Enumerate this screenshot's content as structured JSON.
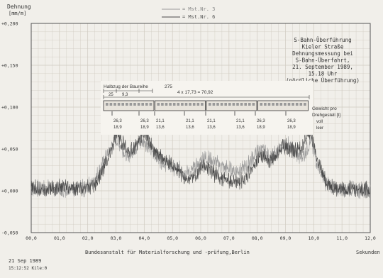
{
  "chart_data": {
    "type": "line",
    "ylabel": "Dehnung",
    "yunit": "[mm/m]",
    "xlabel": "Sekunden",
    "xlim": [
      0,
      12
    ],
    "ylim": [
      -0.05,
      0.2
    ],
    "yticks": [
      -0.05,
      0.0,
      0.05,
      0.1,
      0.15,
      0.2
    ],
    "ytick_labels": [
      "-0,050",
      "+0,000",
      "+0,050",
      "+0,100",
      "+0,150",
      "+0,200"
    ],
    "xticks": [
      0,
      1,
      2,
      3,
      4,
      5,
      6,
      7,
      8,
      9,
      10,
      11,
      12
    ],
    "xtick_labels": [
      "00,0",
      "01,0",
      "02,0",
      "03,0",
      "04,0",
      "05,0",
      "06,0",
      "07,0",
      "08,0",
      "09,0",
      "10,0",
      "11,0",
      "12,0"
    ],
    "grid": true,
    "legend": [
      {
        "text": "= Mst.Nr. 3",
        "color": "#9a9a9a"
      },
      {
        "text": "= Mst.Nr. 6",
        "color": "#4a4a4a"
      }
    ],
    "series": [
      {
        "color": "#9a9a9a",
        "x": [
          0,
          0.5,
          1,
          1.5,
          1.9,
          2.2,
          2.5,
          2.8,
          3.0,
          3.2,
          3.4,
          3.6,
          3.8,
          4.0,
          4.2,
          4.4,
          4.6,
          4.8,
          5.0,
          5.3,
          5.6,
          5.9,
          6.1,
          6.3,
          6.5,
          6.8,
          7.0,
          7.3,
          7.6,
          7.9,
          8.1,
          8.3,
          8.5,
          8.7,
          8.9,
          9.1,
          9.3,
          9.5,
          9.7,
          9.9,
          10.1,
          10.4,
          10.8,
          11.2,
          11.6,
          12
        ],
        "y": [
          0.002,
          0.004,
          0.001,
          0.003,
          0.004,
          0.01,
          0.03,
          0.05,
          0.062,
          0.052,
          0.04,
          0.048,
          0.056,
          0.06,
          0.05,
          0.042,
          0.036,
          0.032,
          0.028,
          0.025,
          0.022,
          0.03,
          0.04,
          0.038,
          0.034,
          0.028,
          0.026,
          0.024,
          0.028,
          0.042,
          0.05,
          0.045,
          0.04,
          0.046,
          0.052,
          0.055,
          0.046,
          0.04,
          0.045,
          0.06,
          0.035,
          0.01,
          0.002,
          0.003,
          0.001,
          0.002
        ]
      },
      {
        "color": "#4a4a4a",
        "x": [
          0,
          0.5,
          1,
          1.5,
          1.9,
          2.2,
          2.5,
          2.8,
          3.0,
          3.2,
          3.4,
          3.6,
          3.8,
          4.0,
          4.2,
          4.4,
          4.6,
          4.8,
          5.0,
          5.3,
          5.6,
          5.9,
          6.1,
          6.3,
          6.5,
          6.8,
          7.0,
          7.3,
          7.6,
          7.9,
          8.1,
          8.3,
          8.5,
          8.7,
          8.9,
          9.1,
          9.3,
          9.5,
          9.7,
          9.9,
          10.1,
          10.4,
          10.8,
          11.2,
          11.6,
          12
        ],
        "y": [
          0.003,
          0.002,
          0.004,
          0.002,
          0.003,
          0.006,
          0.022,
          0.045,
          0.068,
          0.06,
          0.046,
          0.05,
          0.06,
          0.07,
          0.058,
          0.045,
          0.04,
          0.034,
          0.03,
          0.02,
          0.012,
          0.022,
          0.03,
          0.026,
          0.02,
          0.014,
          0.012,
          0.01,
          0.016,
          0.03,
          0.042,
          0.04,
          0.036,
          0.042,
          0.056,
          0.05,
          0.048,
          0.05,
          0.06,
          0.07,
          0.04,
          0.012,
          0.003,
          0.002,
          0.003,
          0.001
        ]
      }
    ]
  },
  "annotation": {
    "lines": [
      "S-Bahn-Überführung",
      "Kieler Straße",
      "Dehnungsmessung bei",
      "S-Bahn-Überfahrt,",
      "21. September 1989,",
      "15.18 Uhr",
      "(nördliche Überführung)"
    ]
  },
  "train": {
    "label": "Halbzug der Baureihe",
    "series_number": "275",
    "length_formula": "4 x 17,73 = 70,92",
    "dim_a": "25",
    "dim_b": "9,3",
    "weight_label": "Gewicht pro Drehgestell [t]",
    "weight_label_line1": "Gewicht pro",
    "weight_label_line2": "Drehgestell [t]",
    "bogies": [
      {
        "full": "26,3",
        "empty": "18,9"
      },
      {
        "full": "26,3",
        "empty": "18,9"
      },
      {
        "full": "21,1",
        "empty": "13,6"
      },
      {
        "full": "21,1",
        "empty": "13,6"
      },
      {
        "full": "21,1",
        "empty": "13,6"
      },
      {
        "full": "21,1",
        "empty": "13,6"
      },
      {
        "full": "26,3",
        "empty": "18,9"
      },
      {
        "full": "26,3",
        "empty": "18,9"
      }
    ],
    "full_label": "voll",
    "empty_label": "leer"
  },
  "footer": {
    "date": "21 Sep 1989",
    "time_file": "15:12:52 Kile:0",
    "institution": "Bundesanstalt für Materialforschung und -prüfung,Berlin"
  }
}
